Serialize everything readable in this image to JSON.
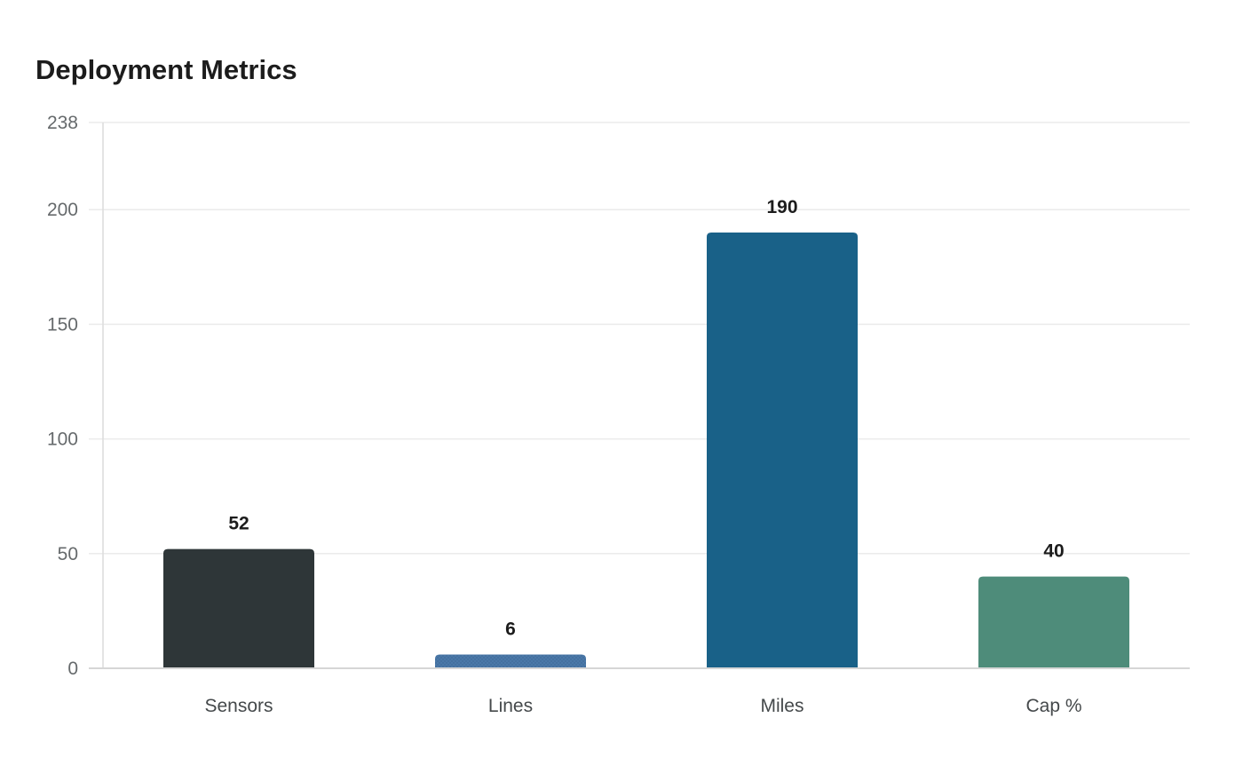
{
  "title": "Deployment Metrics",
  "chart_data": {
    "type": "bar",
    "title": "Deployment Metrics",
    "xlabel": "",
    "ylabel": "",
    "categories": [
      "Sensors",
      "Lines",
      "Miles",
      "Cap %"
    ],
    "values": [
      52,
      6,
      190,
      40
    ],
    "colors": [
      "#2e3638",
      "#4a78a8",
      "#196188",
      "#4e8c7a"
    ],
    "patterns": [
      "solid",
      "dotted",
      "solid",
      "solid"
    ],
    "ylim": [
      0,
      238
    ],
    "yticks": [
      0,
      50,
      100,
      150,
      200,
      238
    ],
    "grid": true,
    "legend": "none",
    "data_labels": true
  }
}
